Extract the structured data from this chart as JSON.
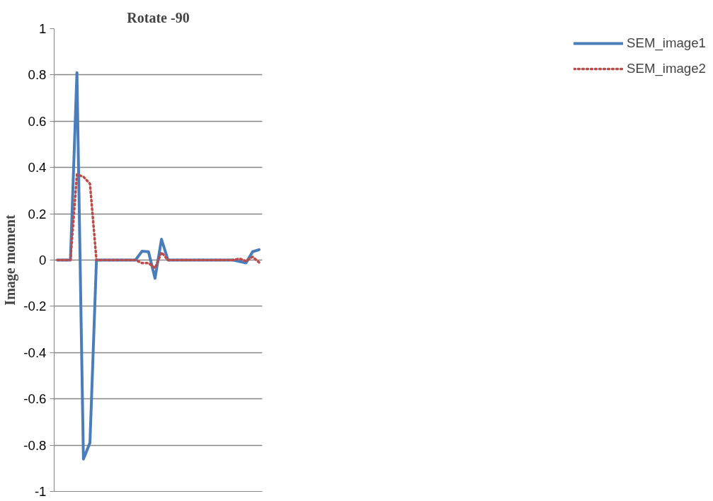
{
  "chart_data": {
    "type": "line",
    "title": "Rotate -90",
    "ylabel": "Image moment",
    "categories": [
      null,
      null,
      null,
      null,
      null,
      null,
      null,
      null,
      null,
      null,
      null,
      null,
      null,
      null,
      null,
      null,
      null,
      null,
      null,
      null,
      null,
      null,
      null,
      null,
      null,
      null,
      null,
      null,
      null,
      null,
      null,
      null
    ],
    "series": [
      {
        "name": "SEM_image1",
        "color": "#4a7ebb",
        "line_style": "solid",
        "values": [
          0,
          0,
          0,
          0.81,
          -0.86,
          -0.79,
          0,
          0,
          0,
          0,
          0,
          0,
          0,
          0.038,
          0.036,
          -0.079,
          0.09,
          0,
          0,
          0,
          0,
          0,
          0,
          0,
          0,
          0,
          0,
          0,
          -0.006,
          -0.012,
          0.036,
          0.045
        ]
      },
      {
        "name": "SEM_image2",
        "color": "#be4b48",
        "line_style": "dotted",
        "values": [
          0,
          0,
          0,
          0.37,
          0.36,
          0.33,
          0,
          0,
          0,
          0,
          0,
          0,
          0,
          -0.013,
          -0.013,
          -0.035,
          0.033,
          0,
          0,
          0,
          0,
          0,
          0,
          0,
          0,
          0,
          0,
          0,
          0.006,
          -0.005,
          0.014,
          -0.01
        ]
      }
    ],
    "ylim": [
      -1,
      1
    ],
    "yticks": [
      -1,
      -0.8,
      -0.6,
      -0.4,
      -0.2,
      0,
      0.2,
      0.4,
      0.6,
      0.8,
      1
    ],
    "grid": "y",
    "legend": "right",
    "tick_labels": "y"
  }
}
